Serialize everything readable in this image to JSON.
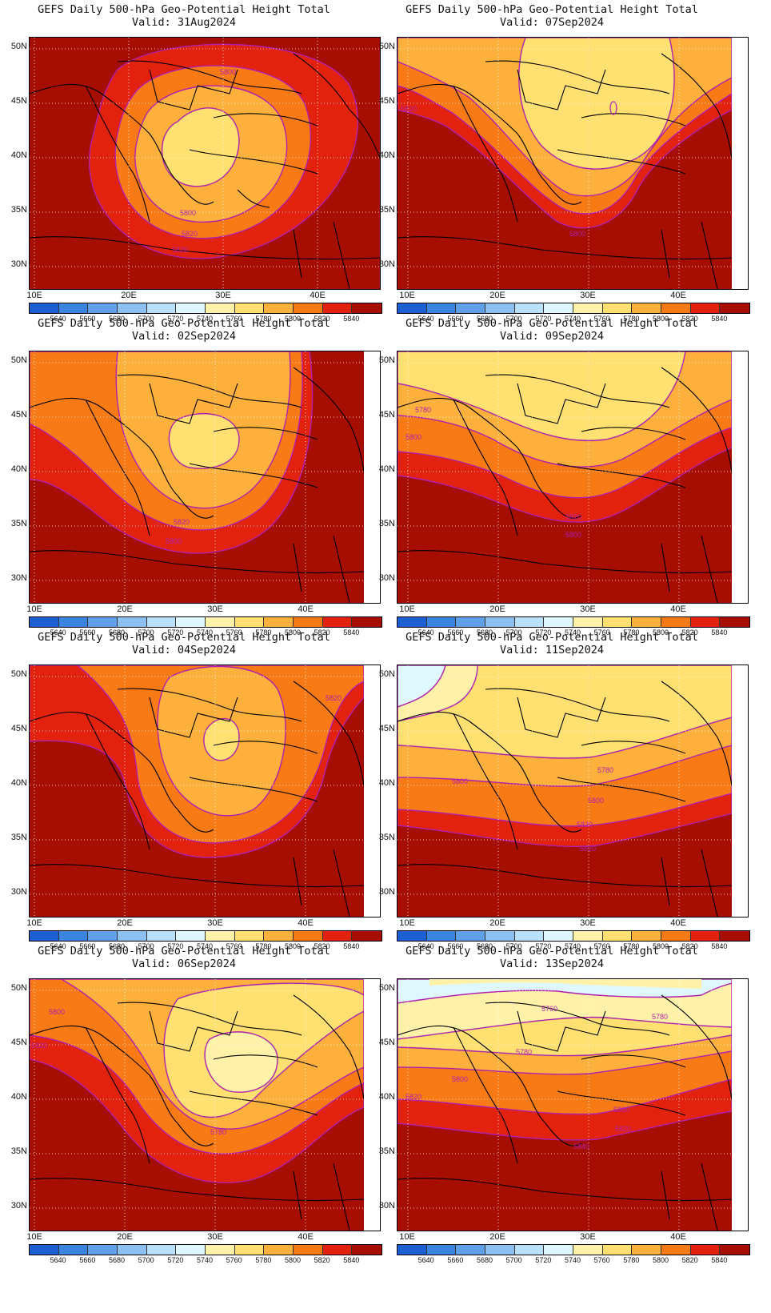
{
  "title_line1": "GEFS Daily 500-hPa Geo-Potential Height Total",
  "y_ticks": [
    "50N",
    "45N",
    "40N",
    "35N",
    "30N"
  ],
  "x_ticks": [
    "10E",
    "20E",
    "30E",
    "40E"
  ],
  "colorbar": {
    "labels": [
      "5640",
      "5660",
      "5680",
      "5700",
      "5720",
      "5740",
      "5760",
      "5780",
      "5800",
      "5820",
      "5840"
    ],
    "colors": [
      "#1b5fd1",
      "#3a84e0",
      "#5ea0ea",
      "#8cc0f2",
      "#b8e0f8",
      "#dff7ff",
      "#fff2a8",
      "#ffe070",
      "#fdb13c",
      "#f87a14",
      "#e2220c",
      "#a50e00"
    ]
  },
  "contour_color": "#b020b0",
  "panels": [
    {
      "valid": "Valid: 31Aug2024",
      "labels": [
        "5800",
        "5800",
        "5820",
        "5820"
      ]
    },
    {
      "valid": "Valid: 07Sep2024",
      "labels": [
        "5820",
        "5800"
      ]
    },
    {
      "valid": "Valid: 02Sep2024",
      "labels": [
        "5820",
        "5800"
      ]
    },
    {
      "valid": "Valid: 09Sep2024",
      "labels": [
        "5780",
        "5800",
        "5820",
        "5800"
      ]
    },
    {
      "valid": "Valid: 04Sep2024",
      "labels": [
        "5820"
      ]
    },
    {
      "valid": "Valid: 11Sep2024",
      "labels": [
        "5780",
        "5800",
        "5800",
        "5820",
        "5820"
      ]
    },
    {
      "valid": "Valid: 06Sep2024",
      "labels": [
        "5800",
        "5820",
        "5780"
      ]
    },
    {
      "valid": "Valid: 13Sep2024",
      "labels": [
        "5760",
        "5780",
        "5780",
        "5800",
        "5800",
        "5820",
        "5820",
        "5840"
      ]
    }
  ]
}
